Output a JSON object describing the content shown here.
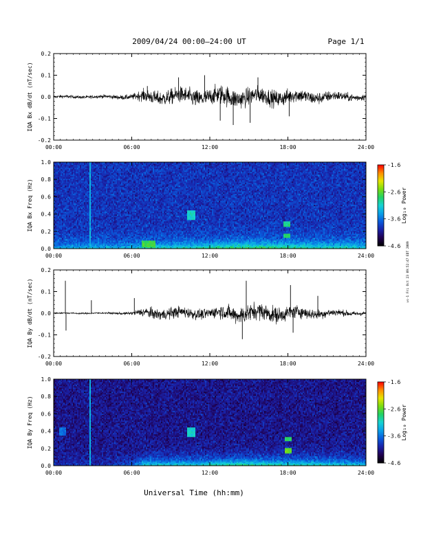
{
  "header": {
    "title": "2009/04/24  00:00–24:00 UT",
    "page": "Page 1/1"
  },
  "side_stamp": "vs-1 Fri Oct 23 09:52:47 EDT 2009",
  "xlabel": "Universal Time (hh:mm)",
  "x_ticks": [
    "00:00",
    "06:00",
    "12:00",
    "18:00",
    "24:00"
  ],
  "colors": {
    "trace": "#000000",
    "colormap": [
      "#000000",
      "#200050",
      "#1a22a8",
      "#0a5adc",
      "#0aa0e8",
      "#16d2d2",
      "#22d264",
      "#7adc10",
      "#e6e600",
      "#ff8c00",
      "#ff0000"
    ]
  },
  "chart_data": [
    {
      "type": "line",
      "ylabel": "IQA Bx dB/dt (nT/sec)",
      "xlim": [
        0,
        24
      ],
      "ylim": [
        -0.2,
        0.2
      ],
      "y_ticks": [
        "-0.2",
        "-0.1",
        "0.0",
        "0.1",
        "0.2"
      ],
      "envelope_hours": [
        0,
        2,
        4,
        6,
        7,
        9,
        11,
        12,
        13,
        14,
        15,
        17,
        18,
        20,
        22,
        24
      ],
      "envelope_amplitude": [
        0.012,
        0.012,
        0.014,
        0.02,
        0.05,
        0.06,
        0.07,
        0.065,
        0.08,
        0.075,
        0.07,
        0.065,
        0.06,
        0.05,
        0.035,
        0.025
      ],
      "spikes": [
        {
          "t": 7.2,
          "v": 0.05
        },
        {
          "t": 9.6,
          "v": 0.09
        },
        {
          "t": 11.6,
          "v": 0.1
        },
        {
          "t": 12.8,
          "v": -0.11
        },
        {
          "t": 13.8,
          "v": -0.13
        },
        {
          "t": 15.1,
          "v": -0.12
        },
        {
          "t": 15.7,
          "v": 0.09
        },
        {
          "t": 18.1,
          "v": -0.09
        }
      ]
    },
    {
      "type": "heatmap",
      "ylabel": "IQA Bx Freq (Hz)",
      "xlim": [
        0,
        24
      ],
      "ylim": [
        0.0,
        1.0
      ],
      "y_ticks": [
        "0.0",
        "0.2",
        "0.4",
        "0.6",
        "0.8",
        "1.0"
      ],
      "colorbar_label": "Log₁₀ Power",
      "colorbar_range": [
        -4.6,
        -1.6
      ],
      "colorbar_ticks": [
        "-1.6",
        "-2.6",
        "-3.6",
        "-4.6"
      ],
      "background_power": -3.9,
      "lowfreq_band_power": [
        -3.3,
        -3.2,
        -3.2,
        -3.2,
        -3.0,
        -2.9,
        -2.9,
        -2.8,
        -2.7,
        -2.6,
        -2.6,
        -2.8,
        -3.0
      ],
      "lowfreq_band_hours": [
        0,
        2,
        4,
        6,
        7,
        9,
        11,
        12,
        13,
        14,
        16,
        20,
        24
      ],
      "features": [
        {
          "t": 2.8,
          "width_hours": 0.1,
          "f_min": 0.0,
          "f_max": 1.0,
          "power": -3.3
        },
        {
          "t": 10.6,
          "width_hours": 0.6,
          "f_min": 0.33,
          "f_max": 0.45,
          "power": -3.1
        },
        {
          "t": 17.9,
          "width_hours": 0.5,
          "f_min": 0.25,
          "f_max": 0.32,
          "power": -2.9
        },
        {
          "t": 17.9,
          "width_hours": 0.5,
          "f_min": 0.12,
          "f_max": 0.17,
          "power": -2.8
        },
        {
          "t": 7.3,
          "width_hours": 1.0,
          "f_min": 0.02,
          "f_max": 0.1,
          "power": -2.7
        }
      ]
    },
    {
      "type": "line",
      "ylabel": "IQA By dB/dt (nT/sec)",
      "xlim": [
        0,
        24
      ],
      "ylim": [
        -0.2,
        0.2
      ],
      "y_ticks": [
        "-0.2",
        "-0.1",
        "0.0",
        "0.1",
        "0.2"
      ],
      "envelope_hours": [
        0,
        2,
        4,
        6,
        7,
        9,
        11,
        12,
        13,
        14,
        15,
        17,
        18,
        20,
        22,
        24
      ],
      "envelope_amplitude": [
        0.006,
        0.006,
        0.006,
        0.012,
        0.04,
        0.045,
        0.04,
        0.04,
        0.055,
        0.065,
        0.07,
        0.065,
        0.055,
        0.04,
        0.025,
        0.015
      ],
      "spikes": [
        {
          "t": 0.9,
          "v": 0.15
        },
        {
          "t": 0.95,
          "v": -0.08
        },
        {
          "t": 2.9,
          "v": 0.06
        },
        {
          "t": 6.2,
          "v": 0.07
        },
        {
          "t": 14.8,
          "v": 0.15
        },
        {
          "t": 14.5,
          "v": -0.12
        },
        {
          "t": 18.2,
          "v": 0.13
        },
        {
          "t": 18.4,
          "v": -0.09
        },
        {
          "t": 20.3,
          "v": 0.08
        }
      ]
    },
    {
      "type": "heatmap",
      "ylabel": "IQA By Freq (Hz)",
      "xlim": [
        0,
        24
      ],
      "ylim": [
        0.0,
        1.0
      ],
      "y_ticks": [
        "0.0",
        "0.2",
        "0.4",
        "0.6",
        "0.8",
        "1.0"
      ],
      "colorbar_label": "Log₁₀ Power",
      "colorbar_range": [
        -4.6,
        -1.6
      ],
      "colorbar_ticks": [
        "-1.6",
        "-2.6",
        "-3.6",
        "-4.6"
      ],
      "background_power": -4.1,
      "lowfreq_band_power": [
        -3.9,
        -3.9,
        -3.9,
        -3.6,
        -3.0,
        -3.0,
        -3.0,
        -2.9,
        -2.8,
        -2.7,
        -2.8,
        -2.9,
        -3.1
      ],
      "lowfreq_band_hours": [
        0,
        2,
        4,
        6,
        7,
        9,
        11,
        12,
        13,
        14,
        16,
        20,
        24
      ],
      "features": [
        {
          "t": 2.8,
          "width_hours": 0.1,
          "f_min": 0.0,
          "f_max": 1.0,
          "power": -3.3
        },
        {
          "t": 10.6,
          "width_hours": 0.6,
          "f_min": 0.33,
          "f_max": 0.45,
          "power": -3.1
        },
        {
          "t": 18.0,
          "width_hours": 0.5,
          "f_min": 0.28,
          "f_max": 0.33,
          "power": -2.8
        },
        {
          "t": 18.0,
          "width_hours": 0.5,
          "f_min": 0.14,
          "f_max": 0.2,
          "power": -2.6
        },
        {
          "t": 0.7,
          "width_hours": 0.6,
          "f_min": 0.35,
          "f_max": 0.45,
          "power": -3.6
        }
      ]
    }
  ]
}
